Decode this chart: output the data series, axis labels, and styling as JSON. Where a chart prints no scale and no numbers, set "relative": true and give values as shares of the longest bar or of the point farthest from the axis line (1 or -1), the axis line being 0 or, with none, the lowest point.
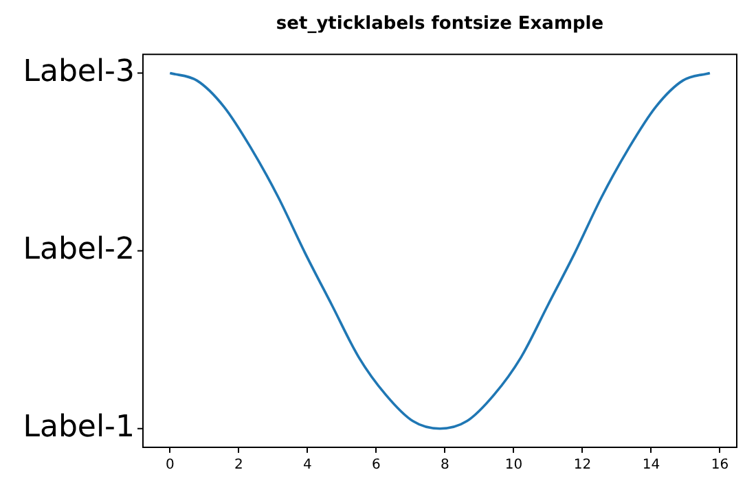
{
  "chart_data": {
    "type": "line",
    "title": "set_yticklabels fontsize Example",
    "relative": true,
    "x": [
      0,
      0.785,
      1.571,
      2.356,
      3.142,
      3.927,
      4.712,
      5.498,
      6.283,
      7.069,
      7.854,
      8.639,
      9.425,
      10.21,
      10.996,
      11.781,
      12.566,
      13.352,
      14.137,
      14.923,
      15.708
    ],
    "series": [
      {
        "color": "#1f77b4",
        "values": [
          1,
          0.98,
          0.91,
          0.8,
          0.67,
          0.52,
          0.38,
          0.24,
          0.14,
          0.07,
          0.05,
          0.07,
          0.14,
          0.24,
          0.38,
          0.52,
          0.67,
          0.8,
          0.91,
          0.98,
          1
        ]
      }
    ],
    "annotations": [
      "Label-3",
      "Label-2",
      "Label-1"
    ],
    "xlim": [
      -0.785,
      16.49
    ],
    "xticks": [
      0,
      2,
      4,
      6,
      8,
      10,
      12,
      14,
      16
    ],
    "grid": false,
    "legend": false,
    "marker": "none",
    "line_style": "solid"
  }
}
